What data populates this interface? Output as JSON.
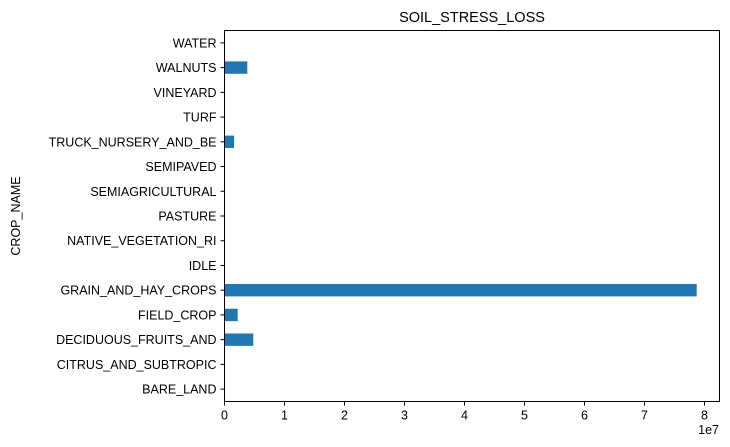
{
  "chart_data": {
    "type": "bar",
    "orientation": "horizontal",
    "title": "SOIL_STRESS_LOSS",
    "xlabel": "",
    "ylabel": "CROP_NAME",
    "x_scale_label": "1e7",
    "xlim": [
      0,
      8.25
    ],
    "x_ticks": [
      0,
      1,
      2,
      3,
      4,
      5,
      6,
      7,
      8
    ],
    "x_tick_labels": [
      "0",
      "1",
      "2",
      "3",
      "4",
      "5",
      "6",
      "7",
      "8"
    ],
    "grid": false,
    "bar_color": "#1f77b4",
    "categories": [
      "BARE_LAND",
      "CITRUS_AND_SUBTROPIC",
      "DECIDUOUS_FRUITS_AND",
      "FIELD_CROP",
      "GRAIN_AND_HAY_CROPS",
      "IDLE",
      "NATIVE_VEGETATION_RI",
      "PASTURE",
      "SEMIAGRICULTURAL",
      "SEMIPAVED",
      "TRUCK_NURSERY_AND_BE",
      "TURF",
      "VINEYARD",
      "WALNUTS",
      "WATER"
    ],
    "values": [
      0,
      0,
      0.48,
      0.22,
      7.87,
      0,
      0,
      0,
      0,
      0,
      0.16,
      0,
      0,
      0.38,
      0
    ],
    "values_unit": "x 1e7"
  }
}
